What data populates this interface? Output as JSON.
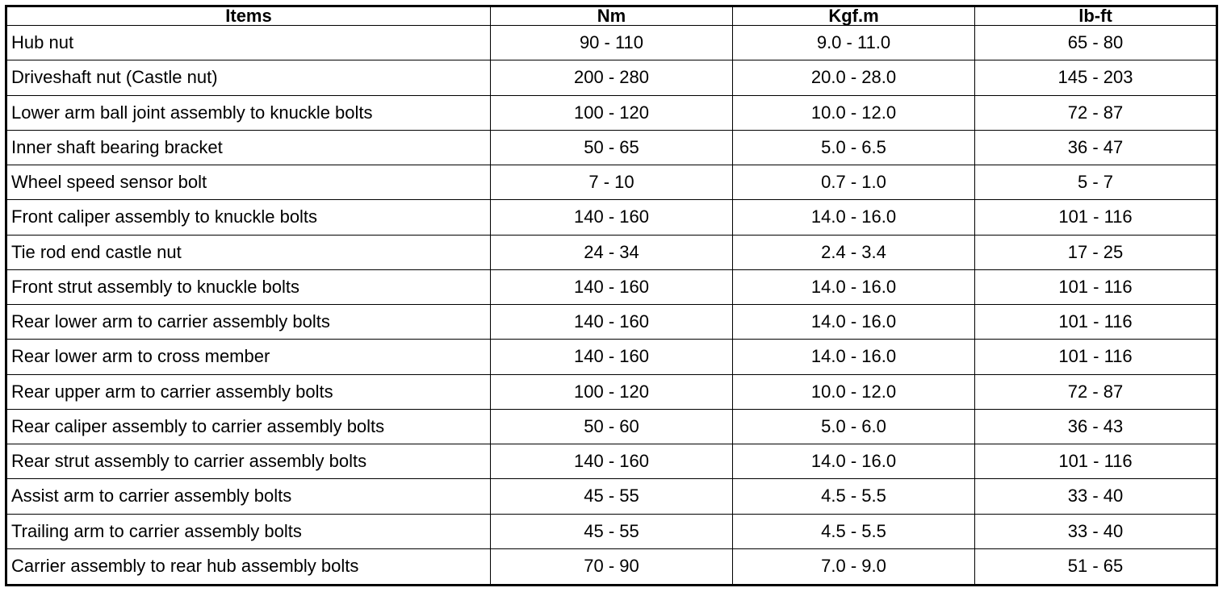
{
  "table": {
    "header": [
      "Items",
      "Nm",
      "Kgf.m",
      "lb-ft"
    ],
    "rows": [
      [
        "Hub nut",
        "90 - 110",
        "9.0 - 11.0",
        "65 - 80"
      ],
      [
        "Driveshaft nut (Castle nut)",
        "200 - 280",
        "20.0 - 28.0",
        "145 - 203"
      ],
      [
        "Lower arm ball joint assembly to knuckle bolts",
        "100 - 120",
        "10.0 - 12.0",
        "72 - 87"
      ],
      [
        "Inner shaft bearing bracket",
        "50 - 65",
        "5.0 - 6.5",
        "36 - 47"
      ],
      [
        "Wheel speed sensor bolt",
        "7 - 10",
        "0.7 - 1.0",
        "5 - 7"
      ],
      [
        "Front caliper assembly to knuckle bolts",
        "140 - 160",
        "14.0 - 16.0",
        "101 - 116"
      ],
      [
        "Tie rod end castle nut",
        "24 - 34",
        "2.4 - 3.4",
        "17 - 25"
      ],
      [
        "Front strut assembly to knuckle bolts",
        "140 - 160",
        "14.0 - 16.0",
        "101 - 116"
      ],
      [
        "Rear lower arm to carrier assembly bolts",
        "140 - 160",
        "14.0 - 16.0",
        "101 - 116"
      ],
      [
        "Rear lower arm to cross member",
        "140 - 160",
        "14.0 - 16.0",
        "101 - 116"
      ],
      [
        "Rear upper arm to carrier assembly bolts",
        "100 - 120",
        "10.0 - 12.0",
        "72 - 87"
      ],
      [
        "Rear caliper assembly to carrier assembly bolts",
        "50 - 60",
        "5.0 - 6.0",
        "36 - 43"
      ],
      [
        "Rear strut assembly to carrier assembly bolts",
        "140 - 160",
        "14.0 - 16.0",
        "101 - 116"
      ],
      [
        "Assist arm to carrier assembly bolts",
        "45 - 55",
        "4.5 - 5.5",
        "33 - 40"
      ],
      [
        "Trailing arm to carrier assembly bolts",
        "45 - 55",
        "4.5 - 5.5",
        "33 - 40"
      ],
      [
        "Carrier assembly to rear hub assembly bolts",
        "70 - 90",
        "7.0 - 9.0",
        "51 - 65"
      ]
    ]
  }
}
